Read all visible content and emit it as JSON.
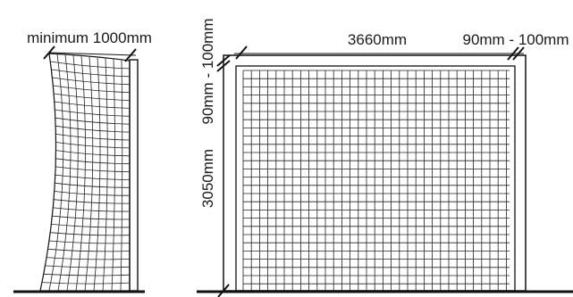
{
  "side_view": {
    "min_width_label": "minimum 1000mm"
  },
  "front_view": {
    "width_label": "3660mm",
    "frame_label_top": "90mm - 100mm",
    "frame_label_side": "90mm - 100mm",
    "height_label": "3050mm"
  }
}
